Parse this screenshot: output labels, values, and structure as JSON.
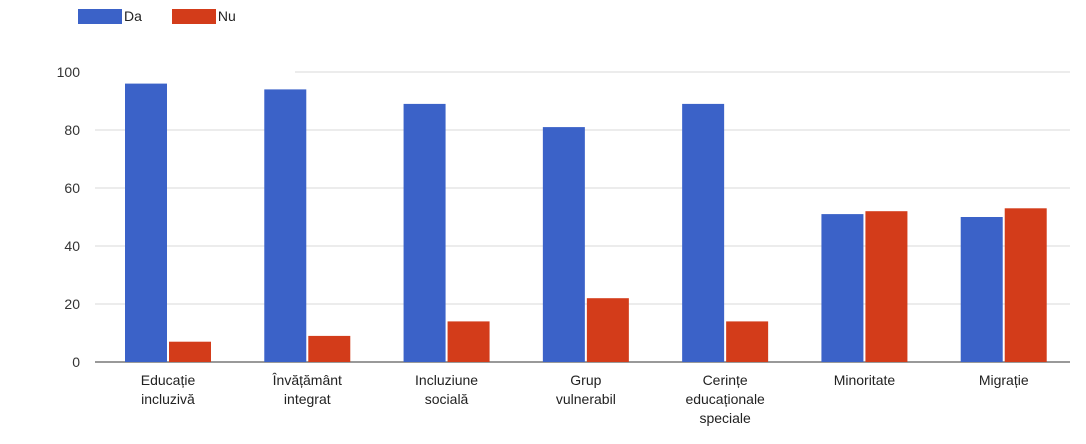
{
  "chart_data": {
    "type": "bar",
    "categories": [
      [
        "Educație",
        "incluzivă"
      ],
      [
        "Învățământ",
        "integrat"
      ],
      [
        "Incluziune",
        "socială"
      ],
      [
        "Grup",
        "vulnerabil"
      ],
      [
        "Cerințe",
        "educaționale",
        "speciale"
      ],
      [
        "Minoritate"
      ],
      [
        "Migrație"
      ]
    ],
    "series": [
      {
        "name": "Da",
        "color": "#3b62c8",
        "values": [
          96,
          94,
          89,
          81,
          89,
          51,
          50
        ]
      },
      {
        "name": "Nu",
        "color": "#d33c1a",
        "values": [
          7,
          9,
          14,
          22,
          14,
          52,
          53
        ]
      }
    ],
    "ylim": [
      0,
      100
    ],
    "yticks": [
      0,
      20,
      40,
      60,
      80,
      100
    ],
    "grid": true,
    "legend_position": "top-left"
  }
}
